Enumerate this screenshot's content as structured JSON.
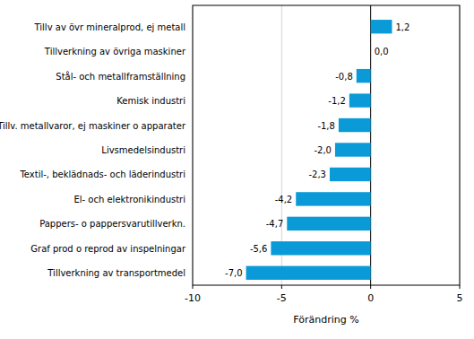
{
  "chart_data": {
    "type": "bar",
    "orientation": "horizontal",
    "x_label": "Förändring %",
    "categories": [
      "Tillv av övr mineralprod, ej metall",
      "Tillverkning av övriga maskiner",
      "Stål- och metallframställning",
      "Kemisk industri",
      "Tillv. metallvaror, ej maskiner o apparater",
      "Livsmedelsindustri",
      "Textil-, beklädnads- och läderindustri",
      "El- och elektronikindustri",
      "Pappers- o pappersvarutillverkn.",
      "Graf prod o reprod av inspelningar",
      "Tillverkning av transportmedel"
    ],
    "values": [
      1.2,
      0.0,
      -0.8,
      -1.2,
      -1.8,
      -2.0,
      -2.3,
      -4.2,
      -4.7,
      -5.6,
      -7.0
    ],
    "value_labels": [
      "1,2",
      "0,0",
      "-0,8",
      "-1,2",
      "-1,8",
      "-2,0",
      "-2,3",
      "-4,2",
      "-4,7",
      "-5,6",
      "-7,0"
    ],
    "data_labels": true,
    "color": "#0a9ad7",
    "xlim": [
      -10,
      5
    ],
    "xticks": [
      -10,
      -5,
      0,
      5
    ],
    "grid": true
  }
}
